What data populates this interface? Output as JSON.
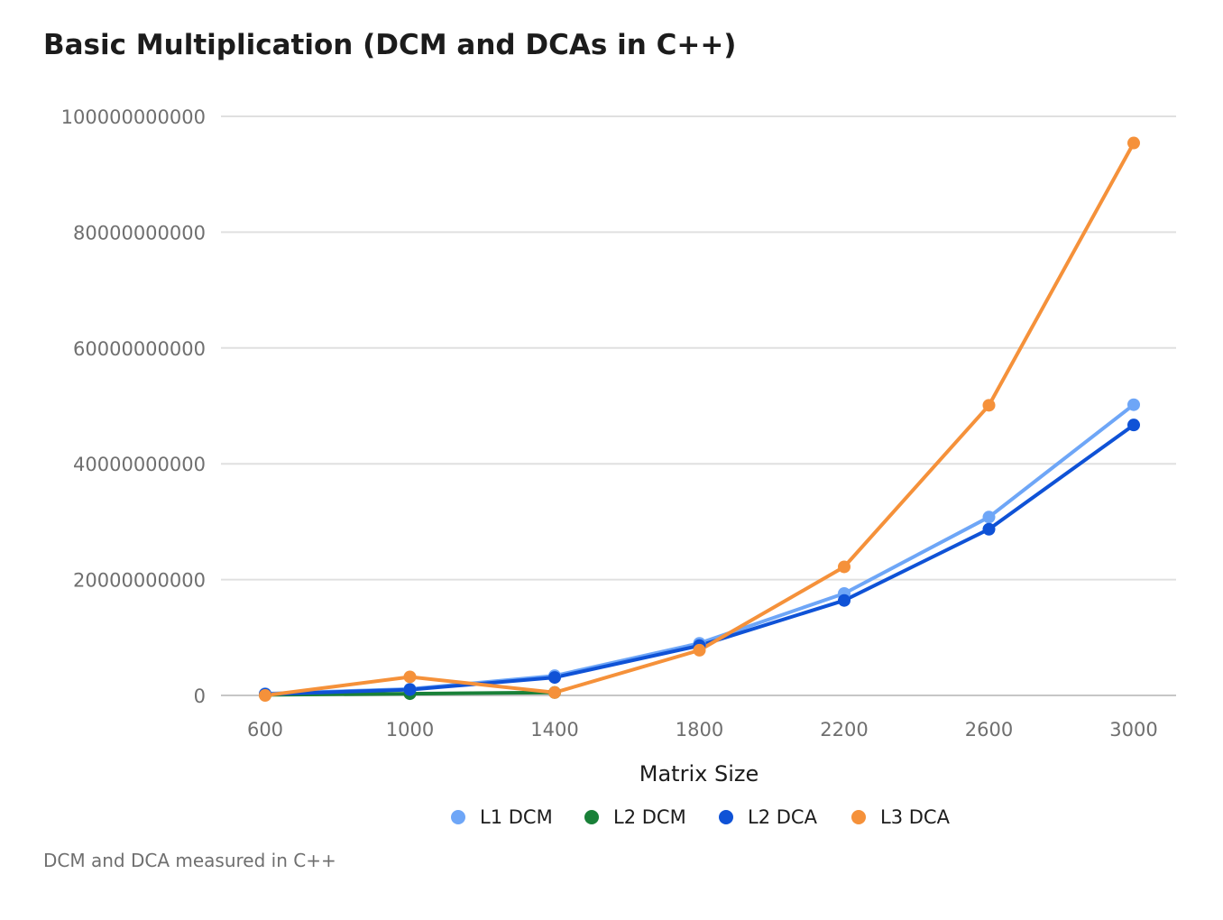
{
  "chart_data": {
    "type": "line",
    "title": "Basic Multiplication (DCM and DCAs in C++)",
    "xlabel": "Matrix Size",
    "ylabel": "",
    "x": [
      600,
      1000,
      1400,
      1800,
      2200,
      2600,
      3000
    ],
    "x_tick_labels": [
      "600",
      "1000",
      "1400",
      "1800",
      "2200",
      "2600",
      "3000"
    ],
    "ylim": [
      0,
      100000000000
    ],
    "y_ticks": [
      0,
      20000000000,
      40000000000,
      60000000000,
      80000000000,
      100000000000
    ],
    "y_tick_labels": [
      "0",
      "20000000000",
      "40000000000",
      "60000000000",
      "80000000000",
      "100000000000"
    ],
    "grid": true,
    "legend_position": "bottom",
    "series": [
      {
        "name": "L1 DCM",
        "color": "#6ea6f7",
        "values": [
          300000000,
          1100000000,
          3400000000,
          9000000000,
          17600000000,
          30800000000,
          50200000000
        ]
      },
      {
        "name": "L2 DCM",
        "color": "#198038",
        "values": [
          100000000,
          300000000,
          500000000,
          null,
          null,
          null,
          null
        ]
      },
      {
        "name": "L2 DCA",
        "color": "#0f52d6",
        "values": [
          200000000,
          1000000000,
          3100000000,
          8600000000,
          16400000000,
          28700000000,
          46700000000
        ]
      },
      {
        "name": "L3 DCA",
        "color": "#f5913a",
        "values": [
          0,
          3200000000,
          500000000,
          7800000000,
          22200000000,
          50100000000,
          95400000000
        ]
      }
    ]
  },
  "footnote": "DCM and DCA measured in C++"
}
